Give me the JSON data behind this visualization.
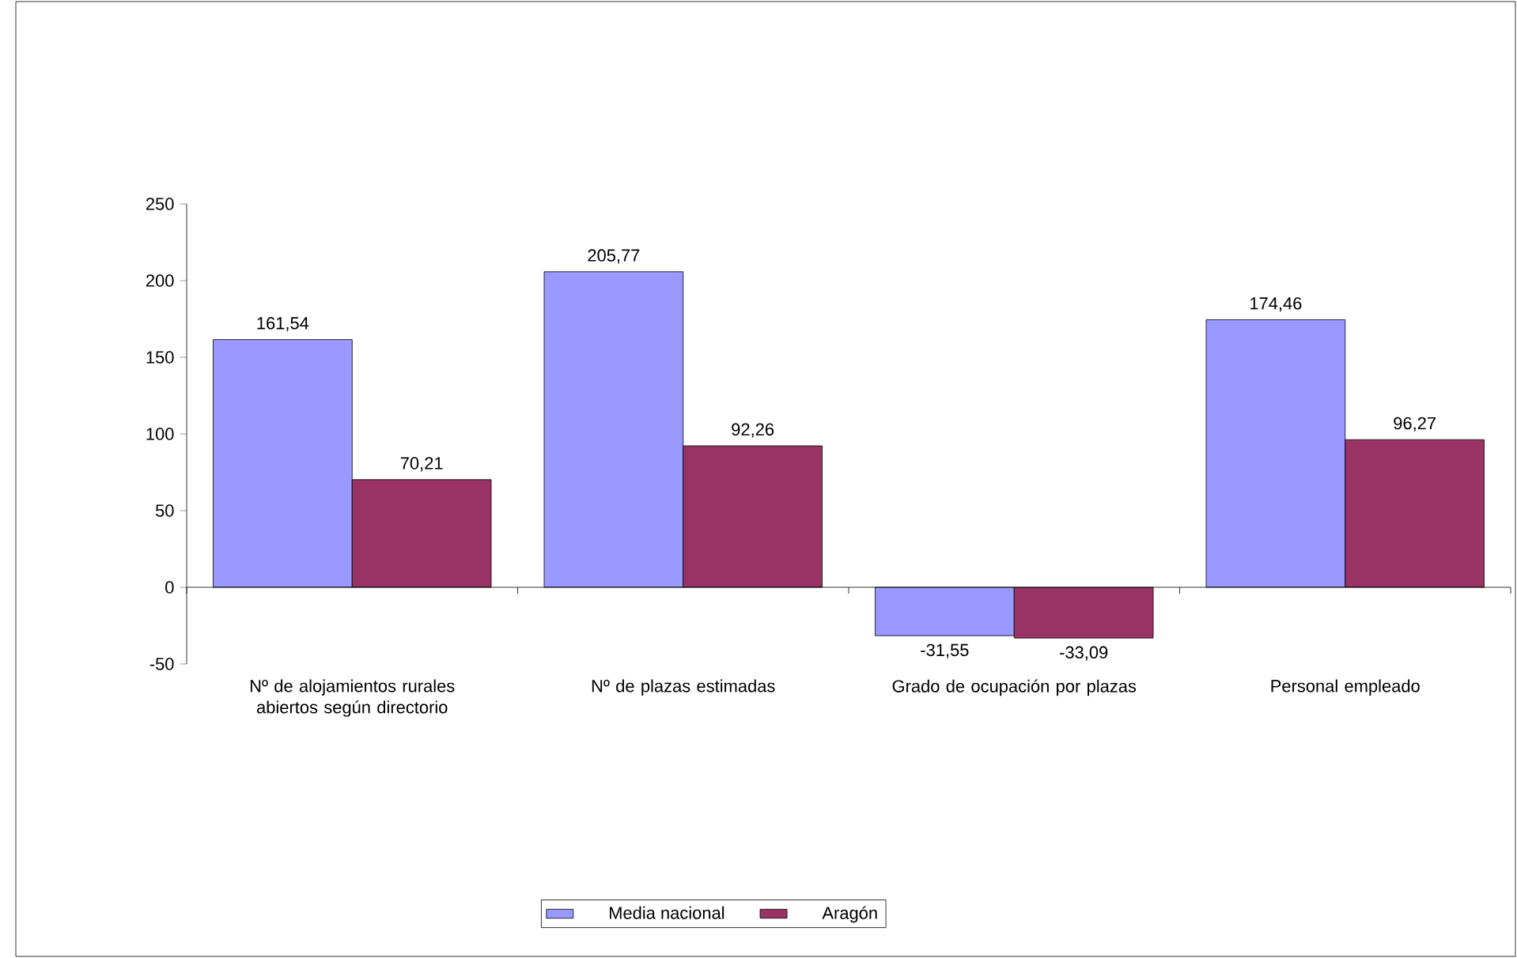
{
  "chart_data": {
    "type": "bar",
    "categories": [
      "Nº de alojamientos rurales abiertos según directorio",
      "Nº de plazas estimadas",
      "Grado de ocupación por plazas",
      "Personal empleado"
    ],
    "series": [
      {
        "name": "Media nacional",
        "color": "#9999ff",
        "values": [
          161.54,
          205.77,
          -31.55,
          174.46
        ],
        "value_labels": [
          "161,54",
          "205,77",
          "-31,55",
          "174,46"
        ]
      },
      {
        "name": "Aragón",
        "color": "#993366",
        "values": [
          70.21,
          92.26,
          -33.09,
          96.27
        ],
        "value_labels": [
          "70,21",
          "92,26",
          "-33,09",
          "96,27"
        ]
      }
    ],
    "ylim": [
      -50,
      250
    ],
    "yticks": [
      -50,
      0,
      50,
      100,
      150,
      200,
      250
    ],
    "legend": "bottom"
  }
}
